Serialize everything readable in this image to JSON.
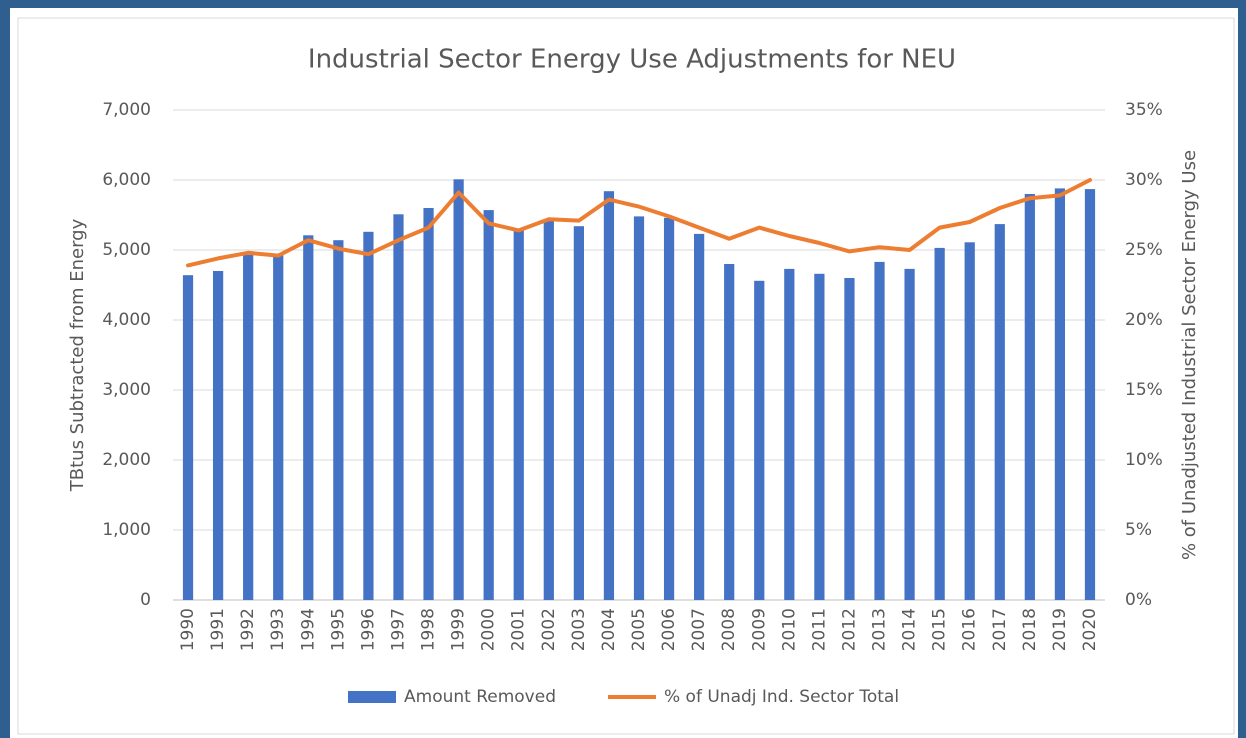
{
  "chart_data": {
    "type": "bar",
    "title": "Industrial Sector Energy Use Adjustments for NEU",
    "y_label": "TBtus Subtracted from Energy",
    "y2_label": "% of Unadjusted Industrial Sector Energy Use",
    "categories": [
      "1990",
      "1991",
      "1992",
      "1993",
      "1994",
      "1995",
      "1996",
      "1997",
      "1998",
      "1999",
      "2000",
      "2001",
      "2002",
      "2003",
      "2004",
      "2005",
      "2006",
      "2007",
      "2008",
      "2009",
      "2010",
      "2011",
      "2012",
      "2013",
      "2014",
      "2015",
      "2016",
      "2017",
      "2018",
      "2019",
      "2020"
    ],
    "series": [
      {
        "name": "Amount Removed",
        "type": "bar",
        "color": "#4472c4",
        "values": [
          4640,
          4700,
          4930,
          4930,
          5210,
          5140,
          5260,
          5510,
          5600,
          6010,
          5570,
          5280,
          5420,
          5340,
          5840,
          5480,
          5460,
          5230,
          4800,
          4560,
          4730,
          4660,
          4600,
          4830,
          4730,
          5030,
          5110,
          5370,
          5800,
          5880,
          5870
        ]
      },
      {
        "name": "% of Unadj Ind. Sector Total",
        "type": "line",
        "axis": "y2",
        "color": "#ed7d31",
        "values": [
          23.9,
          24.4,
          24.8,
          24.6,
          25.7,
          25.1,
          24.7,
          25.7,
          26.6,
          29.1,
          26.9,
          26.4,
          27.2,
          27.1,
          28.6,
          28.1,
          27.4,
          26.6,
          25.8,
          26.6,
          26.0,
          25.5,
          24.9,
          25.2,
          25.0,
          26.6,
          27.0,
          28.0,
          28.7,
          28.9,
          30.0
        ]
      }
    ],
    "ylim": [
      0,
      7000
    ],
    "yticks": [
      0,
      {
        "value": 1000,
        "label": "1,000"
      },
      {
        "value": 2000,
        "label": "2,000"
      },
      {
        "value": 3000,
        "label": "3,000"
      },
      {
        "value": 4000,
        "label": "4,000"
      },
      {
        "value": 5000,
        "label": "5,000"
      },
      {
        "value": 6000,
        "label": "6,000"
      },
      {
        "value": 7000,
        "label": "7,000"
      }
    ],
    "y2lim": [
      0,
      35
    ],
    "y2ticks": [
      {
        "value": 0,
        "label": "0%"
      },
      {
        "value": 5,
        "label": "5%"
      },
      {
        "value": 10,
        "label": "10%"
      },
      {
        "value": 15,
        "label": "15%"
      },
      {
        "value": 20,
        "label": "20%"
      },
      {
        "value": 25,
        "label": "25%"
      },
      {
        "value": 30,
        "label": "30%"
      },
      {
        "value": 35,
        "label": "35%"
      }
    ],
    "grid": true,
    "legend": "bottom"
  }
}
